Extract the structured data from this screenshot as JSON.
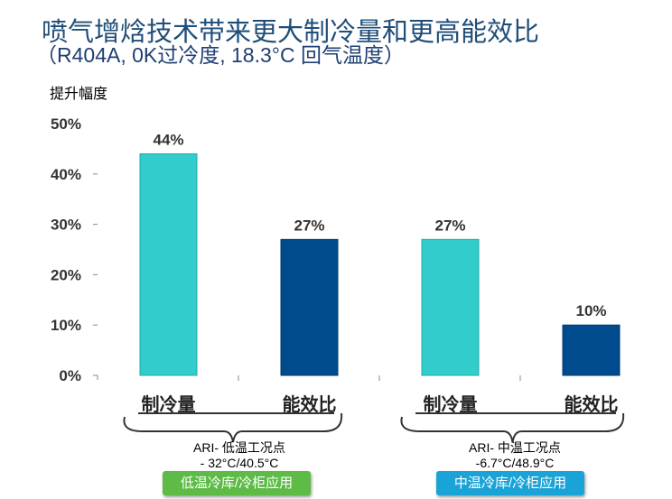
{
  "title": "喷气增焓技术带来更大制冷量和更高能效比",
  "subtitle": "（R404A, 0K过冷度, 18.3°C 回气温度）",
  "chart_data": {
    "type": "bar",
    "ylabel": "提升幅度",
    "ylim": [
      0,
      50
    ],
    "yticks": [
      "0%",
      "10%",
      "20%",
      "30%",
      "40%",
      "50%"
    ],
    "categories": [
      "制冷量",
      "能效比",
      "制冷量",
      "能效比"
    ],
    "values": [
      44,
      27,
      27,
      10
    ],
    "data_labels": [
      "44%",
      "27%",
      "27%",
      "10%"
    ],
    "bar_colors": [
      "#33cccc",
      "#004b8d",
      "#33cccc",
      "#004b8d"
    ],
    "grid": false
  },
  "groups": [
    {
      "condition": "ARI- 低温工况点",
      "temps": "- 32°C/40.5°C",
      "button": "低温冷库/冷柜应用",
      "color": "#5dbb46"
    },
    {
      "condition": "ARI- 中温工况点",
      "temps": "-6.7°C/48.9°C",
      "button": "中温冷库/冷柜应用",
      "color": "#1aa3d6"
    }
  ]
}
